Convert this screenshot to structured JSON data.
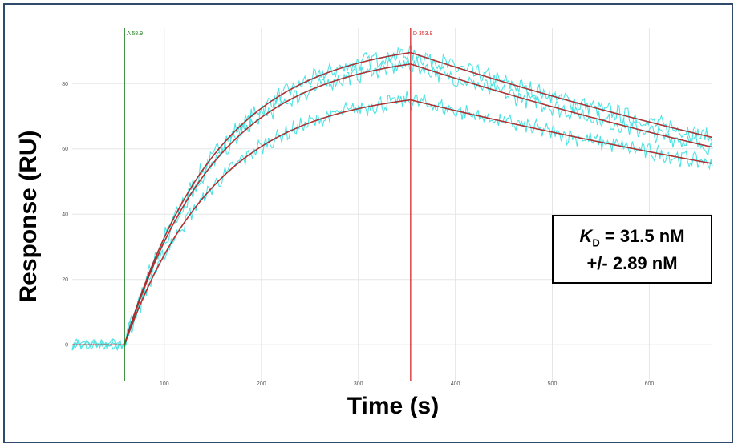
{
  "chart_data": {
    "type": "line",
    "xlabel": "Time (s)",
    "ylabel": "Response (RU)",
    "xlim": [
      5,
      665
    ],
    "ylim": [
      -11,
      97
    ],
    "xticks": [
      100,
      200,
      300,
      400,
      500,
      600
    ],
    "yticks": [
      0,
      20,
      40,
      60,
      80
    ],
    "grid": true,
    "markers": [
      {
        "label": "A 58.9",
        "x": 58.9,
        "color": "#1a7f1a"
      },
      {
        "label": "D 353.9",
        "x": 353.9,
        "color": "#d62728"
      }
    ],
    "association_start": 58.9,
    "dissociation_start": 353.9,
    "series": [
      {
        "color": "#4fe3e3",
        "role": "measured",
        "plateau_at_D": 89.5,
        "value_at_end": 63.5
      },
      {
        "color": "#4fe3e3",
        "role": "measured",
        "plateau_at_D": 86.0,
        "value_at_end": 60.5
      },
      {
        "color": "#4fe3e3",
        "role": "measured",
        "plateau_at_D": 75.0,
        "value_at_end": 55.5
      },
      {
        "color": "#d62728",
        "role": "fit",
        "plateau_at_D": 89.5,
        "value_at_end": 63.5
      },
      {
        "color": "#d62728",
        "role": "fit",
        "plateau_at_D": 86.0,
        "value_at_end": 60.5
      },
      {
        "color": "#d62728",
        "role": "fit",
        "plateau_at_D": 75.0,
        "value_at_end": 55.5
      }
    ],
    "annotation": {
      "kd_symbol": "K",
      "kd_subscript": "D",
      "kd_value": "= 31.5 nM",
      "kd_error": "+/- 2.89 nM"
    }
  }
}
